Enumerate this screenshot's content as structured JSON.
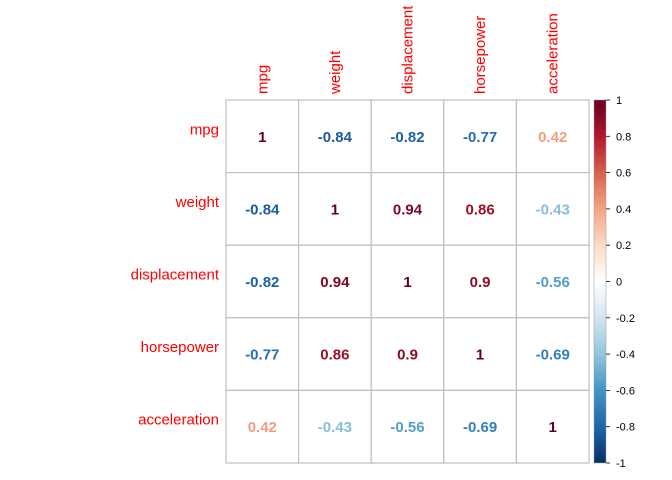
{
  "chart_data": {
    "type": "heatmap",
    "variables": [
      "mpg",
      "weight",
      "displacement",
      "horsepower",
      "acceleration"
    ],
    "matrix": [
      [
        1,
        -0.84,
        -0.82,
        -0.77,
        0.42
      ],
      [
        -0.84,
        1,
        0.94,
        0.86,
        -0.43
      ],
      [
        -0.82,
        0.94,
        1,
        0.9,
        -0.56
      ],
      [
        -0.77,
        0.86,
        0.9,
        1,
        -0.69
      ],
      [
        0.42,
        -0.43,
        -0.56,
        -0.69,
        1
      ]
    ],
    "display": [
      "1",
      "-0.84",
      "-0.82",
      "-0.77",
      "0.42",
      "-0.84",
      "1",
      "0.94",
      "0.86",
      "-0.43",
      "-0.82",
      "0.94",
      "1",
      "0.9",
      "-0.56",
      "-0.77",
      "0.86",
      "0.9",
      "1",
      "-0.69",
      "0.42",
      "-0.43",
      "-0.56",
      "-0.69",
      "1"
    ],
    "colorbar": {
      "range": [
        -1,
        1
      ],
      "ticks": [
        "1",
        "0.8",
        "0.6",
        "0.4",
        "0.2",
        "0",
        "-0.2",
        "-0.4",
        "-0.6",
        "-0.8",
        "-1"
      ],
      "colors": [
        "#67001F",
        "#B2182B",
        "#D6604D",
        "#F4A582",
        "#FDDBC7",
        "#FFFFFF",
        "#D1E5F0",
        "#92C5DE",
        "#4393C3",
        "#2166AC",
        "#053061"
      ]
    },
    "label_color": "#ff0000",
    "grid_color": "#bfbfbf"
  }
}
